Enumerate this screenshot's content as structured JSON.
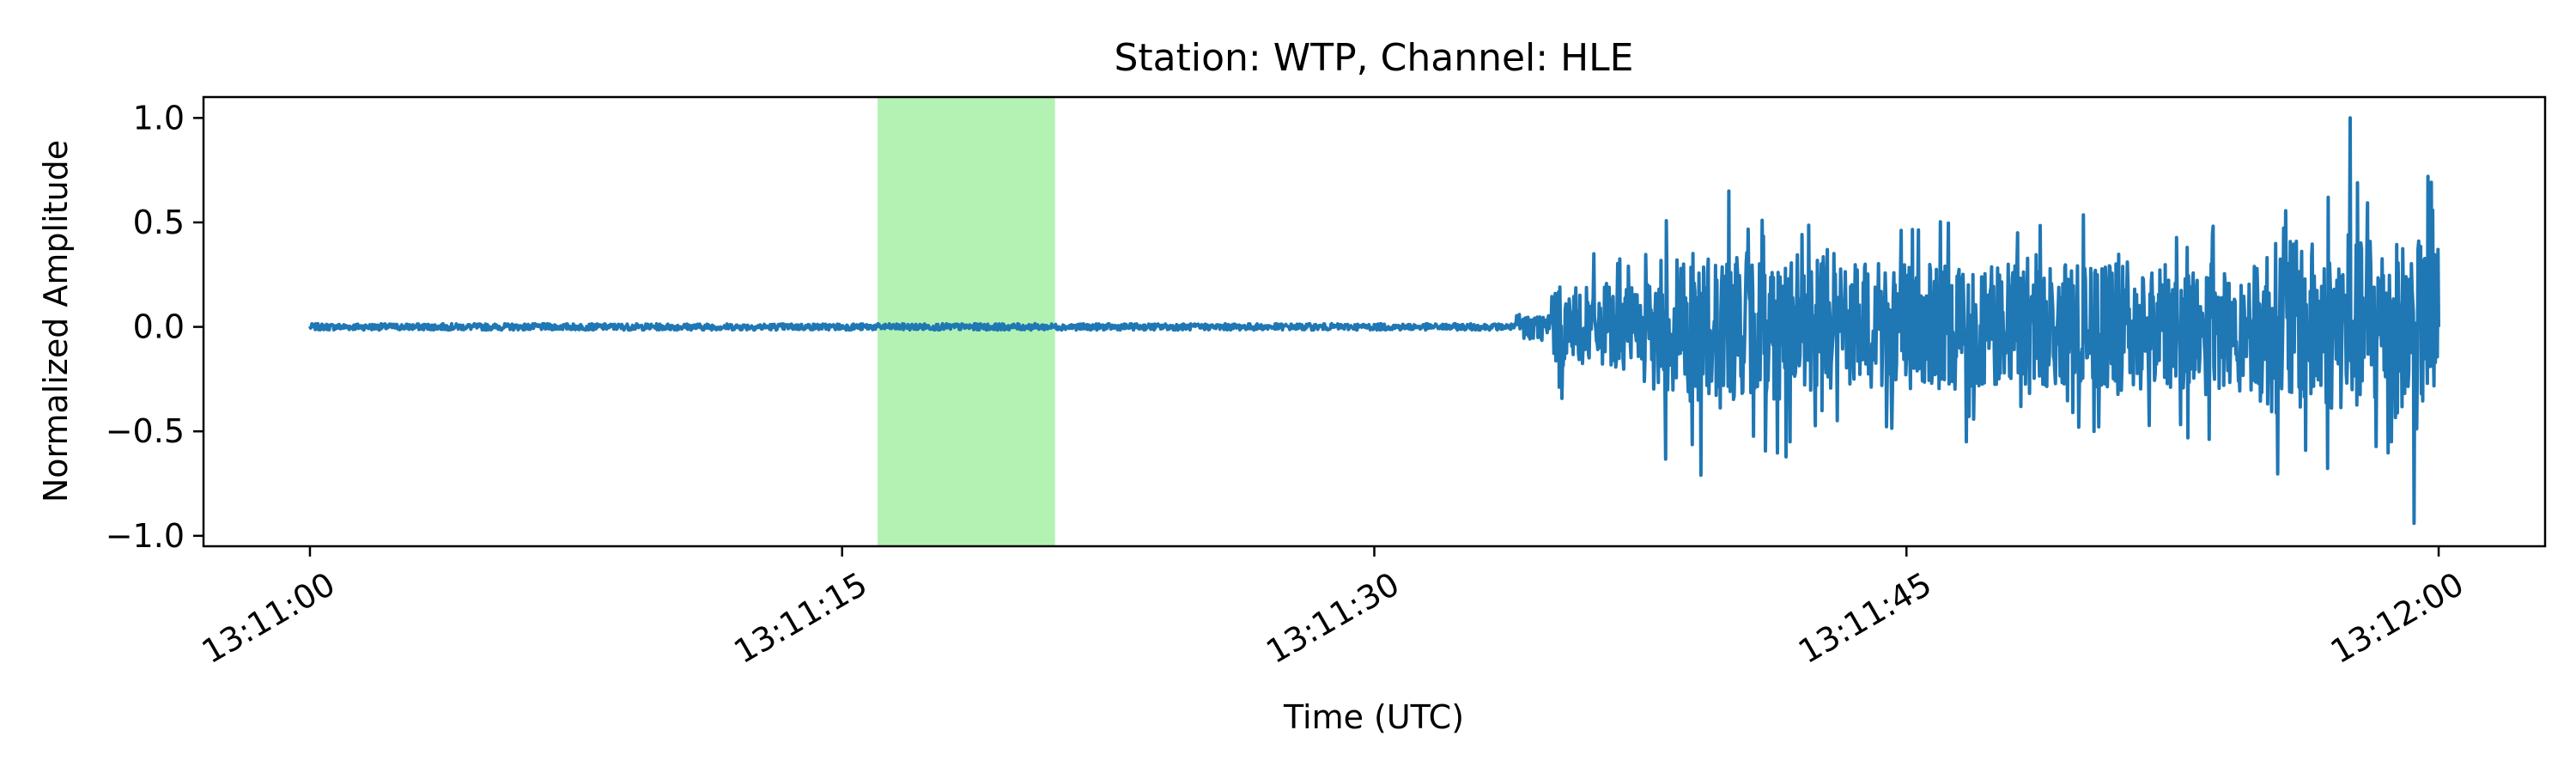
{
  "chart_data": {
    "type": "line",
    "title": "Station: WTP, Channel: HLE",
    "xlabel": "Time (UTC)",
    "ylabel": "Normalized Amplitude",
    "xlim": [
      "13:10:57",
      "13:12:03"
    ],
    "ylim": [
      -1.05,
      1.1
    ],
    "x_ticks": [
      "13:11:00",
      "13:11:15",
      "13:11:30",
      "13:11:45",
      "13:12:00"
    ],
    "y_ticks": [
      1.0,
      0.5,
      0.0,
      -0.5,
      -1.0
    ],
    "y_tick_labels": [
      "1.0",
      "0.5",
      "0.0",
      "−0.5",
      "−1.0"
    ],
    "grid": false,
    "highlight_window": {
      "start": "13:11:16",
      "end": "13:11:21",
      "color": "#b3f2b3"
    },
    "series": [
      {
        "color": "#1f77b4",
        "start": "13:11:00",
        "end": "13:12:00",
        "segments": [
          {
            "from": "13:11:00",
            "to": "13:11:34",
            "envelope": 0.015
          },
          {
            "from": "13:11:34",
            "to": "13:11:35",
            "envelope": 0.12
          },
          {
            "from": "13:11:35",
            "to": "13:11:38",
            "envelope": 0.35
          },
          {
            "from": "13:11:38",
            "to": "13:11:42",
            "envelope": 0.65
          },
          {
            "from": "13:11:42",
            "to": "13:11:55",
            "envelope": 0.55
          },
          {
            "from": "13:11:55",
            "to": "13:12:00",
            "envelope": 0.75
          }
        ],
        "peaks": [
          {
            "time": "13:11:57.5",
            "value": 1.0
          },
          {
            "time": "13:11:59.3",
            "value": -0.94
          },
          {
            "time": "13:11:59.7",
            "value": 0.72
          },
          {
            "time": "13:11:39.2",
            "value": -0.71
          },
          {
            "time": "13:11:40.0",
            "value": 0.65
          }
        ]
      }
    ]
  }
}
